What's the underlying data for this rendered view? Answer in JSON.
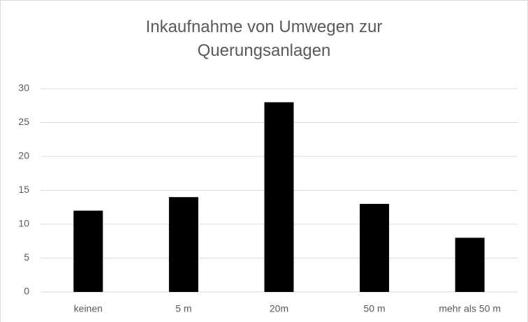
{
  "chart_data": {
    "type": "bar",
    "title": "Inkaufnahme von Umwegen zur Querungsanlagen",
    "categories": [
      "keinen",
      "5 m",
      "20m",
      "50 m",
      "mehr als 50 m"
    ],
    "values": [
      12,
      14,
      28,
      13,
      8
    ],
    "color": "#000000",
    "ylim": [
      0,
      30
    ],
    "yticks": [
      0,
      5,
      10,
      15,
      20,
      25,
      30
    ],
    "grid": true
  }
}
